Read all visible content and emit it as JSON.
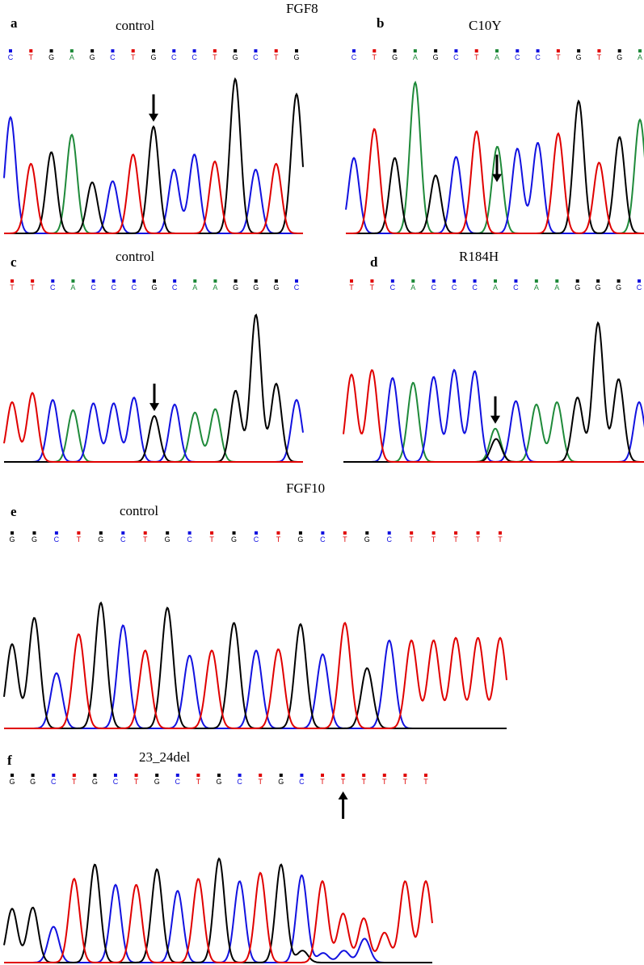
{
  "figure": {
    "gene_titles": {
      "fgf8": "FGF8",
      "fgf10": "FGF10"
    },
    "colors": {
      "A": "#1f8a3a",
      "C": "#1212e0",
      "G": "#000000",
      "T": "#e00000"
    },
    "panels": {
      "a": {
        "letter": "a",
        "label": "control",
        "sequence": [
          "C",
          "T",
          "G",
          "A",
          "G",
          "C",
          "T",
          "G",
          "C",
          "C",
          "T",
          "G",
          "C",
          "T",
          "G"
        ],
        "arrow": "down",
        "arrow_base": 7
      },
      "b": {
        "letter": "b",
        "label": "C10Y",
        "sequence": [
          "C",
          "T",
          "G",
          "A",
          "G",
          "C",
          "T",
          "A",
          "C",
          "C",
          "T",
          "G",
          "T",
          "G",
          "A"
        ],
        "arrow": "down",
        "arrow_base": 7
      },
      "c": {
        "letter": "c",
        "label": "control",
        "sequence": [
          "T",
          "T",
          "C",
          "A",
          "C",
          "C",
          "C",
          "G",
          "C",
          "A",
          "A",
          "G",
          "G",
          "G",
          "C"
        ],
        "arrow": "down",
        "arrow_base": 7
      },
      "d": {
        "letter": "d",
        "label": "R184H",
        "sequence": [
          "T",
          "T",
          "C",
          "A",
          "C",
          "C",
          "C",
          "A",
          "C",
          "A",
          "A",
          "G",
          "G",
          "G",
          "C"
        ],
        "arrow": "down",
        "arrow_base": 7
      },
      "e": {
        "letter": "e",
        "label": "control",
        "sequence": [
          "G",
          "G",
          "C",
          "T",
          "G",
          "C",
          "T",
          "G",
          "C",
          "T",
          "G",
          "C",
          "T",
          "G",
          "C",
          "T",
          "G",
          "C",
          "T",
          "T",
          "T",
          "T",
          "T"
        ]
      },
      "f": {
        "letter": "f",
        "label": "23_24del",
        "sequence": [
          "G",
          "G",
          "C",
          "T",
          "G",
          "C",
          "T",
          "G",
          "C",
          "T",
          "G",
          "C",
          "T",
          "G",
          "C",
          "T",
          "T",
          "T",
          "T",
          "T",
          "T"
        ],
        "arrow": "up",
        "arrow_base": 16
      }
    }
  }
}
